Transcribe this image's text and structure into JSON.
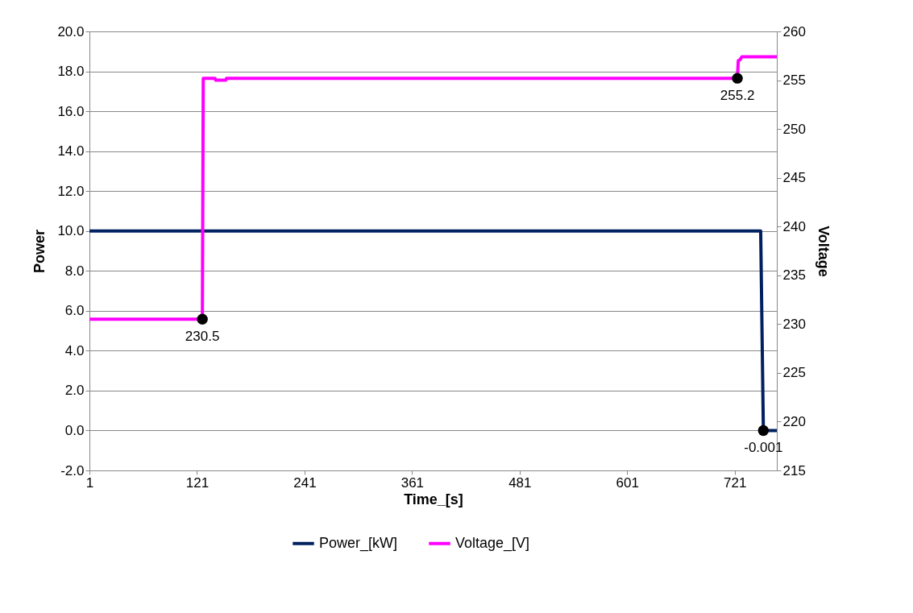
{
  "chart_data": {
    "type": "line",
    "xlabel": "Time_[s]",
    "ylabel": "Power",
    "y2label": "Voltage",
    "xlim": [
      1,
      768
    ],
    "xticks": [
      1,
      121,
      241,
      361,
      481,
      601,
      721
    ],
    "ylim": [
      -2,
      20
    ],
    "yticks": [
      {
        "value": -2,
        "label": "-2.0"
      },
      {
        "value": 0,
        "label": "0.0"
      },
      {
        "value": 2,
        "label": "2.0"
      },
      {
        "value": 4,
        "label": "4.0"
      },
      {
        "value": 6,
        "label": "6.0"
      },
      {
        "value": 8,
        "label": "8.0"
      },
      {
        "value": 10,
        "label": "10.0"
      },
      {
        "value": 12,
        "label": "12.0"
      },
      {
        "value": 14,
        "label": "14.0"
      },
      {
        "value": 16,
        "label": "16.0"
      },
      {
        "value": 18,
        "label": "18.0"
      },
      {
        "value": 20,
        "label": "20.0"
      }
    ],
    "y2lim": [
      215,
      260
    ],
    "y2ticks": [
      215,
      220,
      225,
      230,
      235,
      240,
      245,
      250,
      255,
      260
    ],
    "grid": "y",
    "legend": "bottom",
    "marker": "none",
    "line_style": "solid",
    "series": [
      {
        "name": "Power_[kW]",
        "color": "#002060",
        "x": [
          1,
          750,
          753,
          768
        ],
        "values": [
          10,
          10,
          -0.001,
          -0.001
        ],
        "value_labels": [
          null,
          null,
          "-0.001",
          null
        ]
      },
      {
        "name": "Voltage_[V]",
        "color": "#ff00ff",
        "axis": "y2",
        "x": [
          1,
          127,
          128,
          141,
          142,
          153,
          154,
          724,
          725,
          727,
          729,
          768
        ],
        "values": [
          230.5,
          230.5,
          255.2,
          255.2,
          255.0,
          255.0,
          255.2,
          255.2,
          257.0,
          257.1,
          257.4,
          257.4
        ],
        "value_labels": [
          null,
          "230.5",
          null,
          null,
          null,
          null,
          null,
          "255.2",
          null,
          null,
          null,
          null
        ]
      }
    ]
  }
}
